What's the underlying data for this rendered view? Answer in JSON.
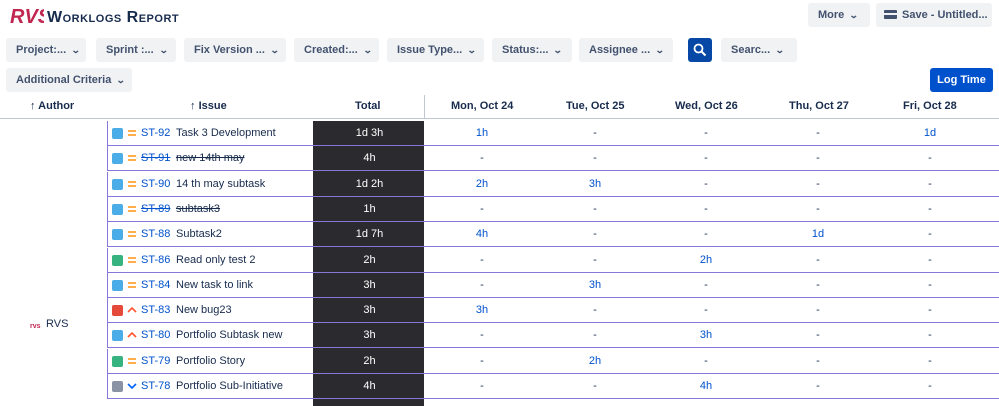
{
  "app": {
    "logo_text": "RVS",
    "title": "Worklogs Report"
  },
  "toolbar": {
    "more_label": "More",
    "save_label": "Save - Untitled..."
  },
  "filters": {
    "project": "Project:...",
    "sprint": "Sprint :...",
    "fix_version": "Fix Version ...",
    "created": "Created:...",
    "issue_type": "Issue Type...",
    "status": "Status:...",
    "assignee": "Assignee ...",
    "search": "Searc...",
    "additional": "Additional Criteria"
  },
  "actions": {
    "log_time": "Log Time"
  },
  "columns": {
    "author": "Author",
    "issue": "Issue",
    "total": "Total",
    "days": [
      "Mon, Oct 24",
      "Tue, Oct 25",
      "Wed, Oct 26",
      "Thu, Oct 27",
      "Fri, Oct 28"
    ]
  },
  "author": {
    "name": "RVS"
  },
  "colors": {
    "primary": "#0052cc",
    "total_bg": "#2b2b2f",
    "row_border": "#8777d9",
    "subtask": "#4bade8",
    "story": "#36b37e",
    "bug": "#e5493a",
    "task": "#4bade8",
    "subinit": "#8993a4"
  },
  "rows": [
    {
      "type": "subtask",
      "priority": "medium",
      "key": "ST-92",
      "summary": "Task 3 Development",
      "done": false,
      "total": "1d 3h",
      "days": [
        "1h",
        "-",
        "-",
        "-",
        "1d"
      ]
    },
    {
      "type": "subtask",
      "priority": "medium",
      "key": "ST-91",
      "summary": "new 14th may",
      "done": true,
      "total": "4h",
      "days": [
        "-",
        "-",
        "-",
        "-",
        "-"
      ]
    },
    {
      "type": "subtask",
      "priority": "medium",
      "key": "ST-90",
      "summary": "14 th may subtask",
      "done": false,
      "total": "1d 2h",
      "days": [
        "2h",
        "3h",
        "-",
        "-",
        "-"
      ]
    },
    {
      "type": "subtask",
      "priority": "medium",
      "key": "ST-89",
      "summary": "subtask3",
      "done": true,
      "total": "1h",
      "days": [
        "-",
        "-",
        "-",
        "-",
        "-"
      ]
    },
    {
      "type": "subtask",
      "priority": "medium",
      "key": "ST-88",
      "summary": "Subtask2",
      "done": false,
      "total": "1d 7h",
      "days": [
        "4h",
        "-",
        "-",
        "1d",
        "-"
      ]
    },
    {
      "type": "story",
      "priority": "medium",
      "key": "ST-86",
      "summary": "Read only test 2",
      "done": false,
      "total": "2h",
      "days": [
        "-",
        "-",
        "2h",
        "-",
        "-"
      ]
    },
    {
      "type": "task",
      "priority": "medium",
      "key": "ST-84",
      "summary": "New task to link",
      "done": false,
      "total": "3h",
      "days": [
        "-",
        "3h",
        "-",
        "-",
        "-"
      ]
    },
    {
      "type": "bug",
      "priority": "high",
      "key": "ST-83",
      "summary": "New bug23",
      "done": false,
      "total": "3h",
      "days": [
        "3h",
        "-",
        "-",
        "-",
        "-"
      ]
    },
    {
      "type": "subtask",
      "priority": "high",
      "key": "ST-80",
      "summary": "Portfolio Subtask new",
      "done": false,
      "total": "3h",
      "days": [
        "-",
        "-",
        "3h",
        "-",
        "-"
      ]
    },
    {
      "type": "story",
      "priority": "medium",
      "key": "ST-79",
      "summary": "Portfolio Story",
      "done": false,
      "total": "2h",
      "days": [
        "-",
        "2h",
        "-",
        "-",
        "-"
      ]
    },
    {
      "type": "subinit",
      "priority": "low",
      "key": "ST-78",
      "summary": "Portfolio Sub-Initiative",
      "done": false,
      "total": "4h",
      "days": [
        "-",
        "-",
        "4h",
        "-",
        "-"
      ]
    }
  ]
}
